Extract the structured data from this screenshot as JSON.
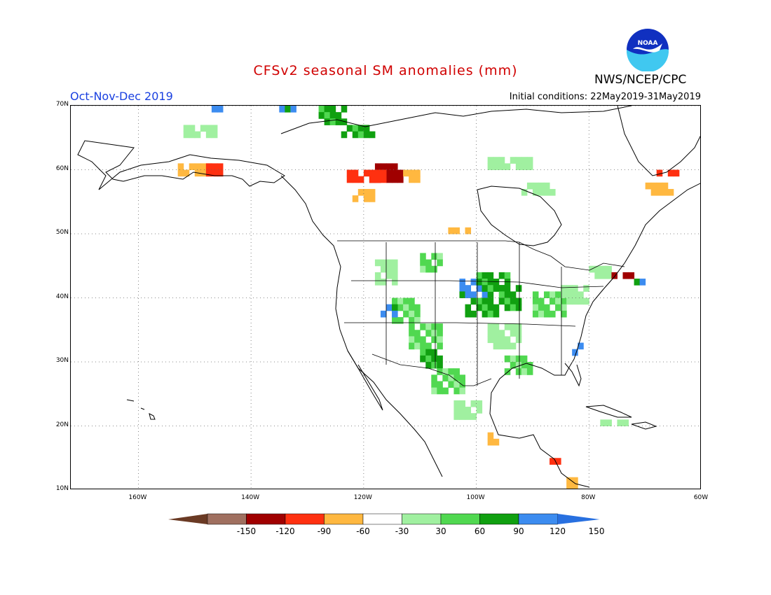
{
  "title": "CFSv2 seasonal SM anomalies (mm)",
  "org": "NWS/NCEP/CPC",
  "logo_text": "NOAA",
  "period": "Oct-Nov-Dec 2019",
  "initial_conditions": "Initial conditions: 22May2019-31May2019",
  "map": {
    "lon_min": -172,
    "lon_max": -60,
    "lat_min": 10,
    "lat_max": 70
  },
  "lat_labels": [
    {
      "v": 70,
      "text": "70N"
    },
    {
      "v": 60,
      "text": "60N"
    },
    {
      "v": 50,
      "text": "50N"
    },
    {
      "v": 40,
      "text": "40N"
    },
    {
      "v": 30,
      "text": "30N"
    },
    {
      "v": 20,
      "text": "20N"
    },
    {
      "v": 10,
      "text": "10N"
    }
  ],
  "lon_labels": [
    {
      "v": -160,
      "text": "160W"
    },
    {
      "v": -140,
      "text": "140W"
    },
    {
      "v": -120,
      "text": "120W"
    },
    {
      "v": -100,
      "text": "100W"
    },
    {
      "v": -80,
      "text": "80W"
    },
    {
      "v": -60,
      "text": "60W"
    }
  ],
  "colorbar": {
    "colors": [
      "#ffffff",
      "#a0f0a0",
      "#50d850",
      "#10a010",
      "#3c8cf0"
    ],
    "neg_colors": [
      "#a07060",
      "#a00000",
      "#ff3010",
      "#ffb840",
      "#ffffff"
    ],
    "ticks": [
      "-150",
      "-120",
      "-90",
      "-60",
      "-30",
      "30",
      "60",
      "90",
      "120",
      "150"
    ],
    "left_arrow_color": "#6a3a24",
    "right_arrow_color": "#2870e0"
  },
  "anomaly_regions": [
    {
      "lon": -119,
      "lat": 61,
      "level": -3,
      "w": 6,
      "h": 3
    },
    {
      "lon": -123,
      "lat": 60,
      "level": -2,
      "w": 7,
      "h": 2
    },
    {
      "lon": -113,
      "lat": 60,
      "level": -1,
      "w": 3,
      "h": 2
    },
    {
      "lon": -153,
      "lat": 61,
      "level": -1,
      "w": 6,
      "h": 2
    },
    {
      "lon": -148,
      "lat": 61,
      "level": -2,
      "w": 3,
      "h": 2
    },
    {
      "lon": -122,
      "lat": 57,
      "level": -1,
      "w": 4,
      "h": 2
    },
    {
      "lon": -105,
      "lat": 51,
      "level": -1,
      "w": 4,
      "h": 1
    },
    {
      "lon": -70,
      "lat": 58,
      "level": -1,
      "w": 5,
      "h": 2
    },
    {
      "lon": -68,
      "lat": 60,
      "level": -2,
      "w": 4,
      "h": 1
    },
    {
      "lon": -128,
      "lat": 70,
      "level": 3,
      "w": 5,
      "h": 3
    },
    {
      "lon": -124,
      "lat": 67,
      "level": 3,
      "w": 6,
      "h": 2
    },
    {
      "lon": -147,
      "lat": 70,
      "level": 4,
      "w": 3,
      "h": 1
    },
    {
      "lon": -135,
      "lat": 70,
      "level": 4,
      "w": 3,
      "h": 1
    },
    {
      "lon": -103,
      "lat": 43,
      "level": 4,
      "w": 6,
      "h": 3
    },
    {
      "lon": -100,
      "lat": 44,
      "level": 3,
      "w": 6,
      "h": 3
    },
    {
      "lon": -102,
      "lat": 40,
      "level": 3,
      "w": 6,
      "h": 3
    },
    {
      "lon": -96,
      "lat": 42,
      "level": 3,
      "w": 4,
      "h": 4
    },
    {
      "lon": -115,
      "lat": 40,
      "level": 2,
      "w": 5,
      "h": 4
    },
    {
      "lon": -112,
      "lat": 36,
      "level": 2,
      "w": 6,
      "h": 4
    },
    {
      "lon": -110,
      "lat": 32,
      "level": 3,
      "w": 4,
      "h": 3
    },
    {
      "lon": -117,
      "lat": 39,
      "level": 4,
      "w": 3,
      "h": 2
    },
    {
      "lon": -98,
      "lat": 36,
      "level": 1,
      "w": 6,
      "h": 4
    },
    {
      "lon": -95,
      "lat": 31,
      "level": 2,
      "w": 5,
      "h": 3
    },
    {
      "lon": -90,
      "lat": 41,
      "level": 2,
      "w": 6,
      "h": 4
    },
    {
      "lon": -85,
      "lat": 42,
      "level": 1,
      "w": 5,
      "h": 3
    },
    {
      "lon": -108,
      "lat": 29,
      "level": 2,
      "w": 6,
      "h": 4
    },
    {
      "lon": -104,
      "lat": 24,
      "level": 1,
      "w": 5,
      "h": 3
    },
    {
      "lon": -118,
      "lat": 46,
      "level": 1,
      "w": 4,
      "h": 4
    },
    {
      "lon": -110,
      "lat": 47,
      "level": 2,
      "w": 4,
      "h": 3
    },
    {
      "lon": -98,
      "lat": 62,
      "level": 1,
      "w": 8,
      "h": 2
    },
    {
      "lon": -92,
      "lat": 58,
      "level": 1,
      "w": 6,
      "h": 2
    },
    {
      "lon": -152,
      "lat": 67,
      "level": 1,
      "w": 6,
      "h": 2
    },
    {
      "lon": -80,
      "lat": 45,
      "level": 1,
      "w": 4,
      "h": 2
    },
    {
      "lon": -76,
      "lat": 44,
      "level": -3,
      "w": 4,
      "h": 1
    },
    {
      "lon": -72,
      "lat": 43,
      "level": 4,
      "w": 2,
      "h": 1
    },
    {
      "lon": -83,
      "lat": 33,
      "level": 4,
      "w": 2,
      "h": 2
    },
    {
      "lon": -78,
      "lat": 21,
      "level": 1,
      "w": 5,
      "h": 1
    },
    {
      "lon": -87,
      "lat": 15,
      "level": -2,
      "w": 2,
      "h": 1
    },
    {
      "lon": -98,
      "lat": 19,
      "level": -1,
      "w": 2,
      "h": 2
    },
    {
      "lon": -84,
      "lat": 12,
      "level": -1,
      "w": 2,
      "h": 2
    }
  ]
}
